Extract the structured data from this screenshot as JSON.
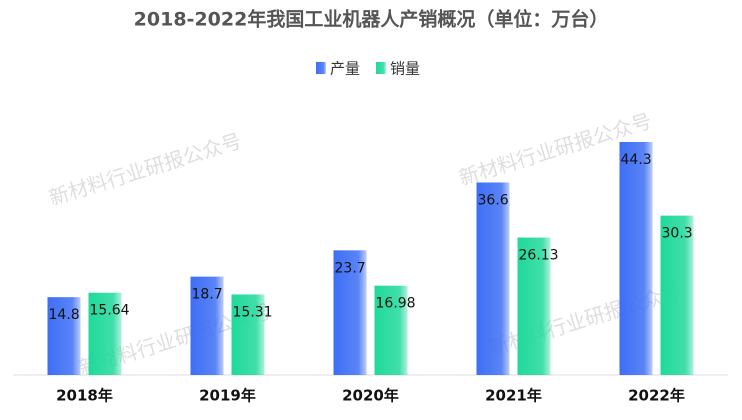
{
  "chart_data": {
    "type": "bar",
    "title": "2018-2022年我国工业机器人产销概况（单位：万台）",
    "watermark": "新材料行业研报公众号",
    "categories": [
      "2018年",
      "2019年",
      "2020年",
      "2021年",
      "2022年"
    ],
    "series": [
      {
        "name": "产量",
        "color": "#3d6ef5",
        "values": [
          14.8,
          18.7,
          23.7,
          36.6,
          44.3
        ]
      },
      {
        "name": "销量",
        "color": "#1fd99a",
        "values": [
          15.64,
          15.31,
          16.98,
          26.13,
          30.3
        ]
      }
    ],
    "ylim": [
      0,
      50
    ]
  }
}
